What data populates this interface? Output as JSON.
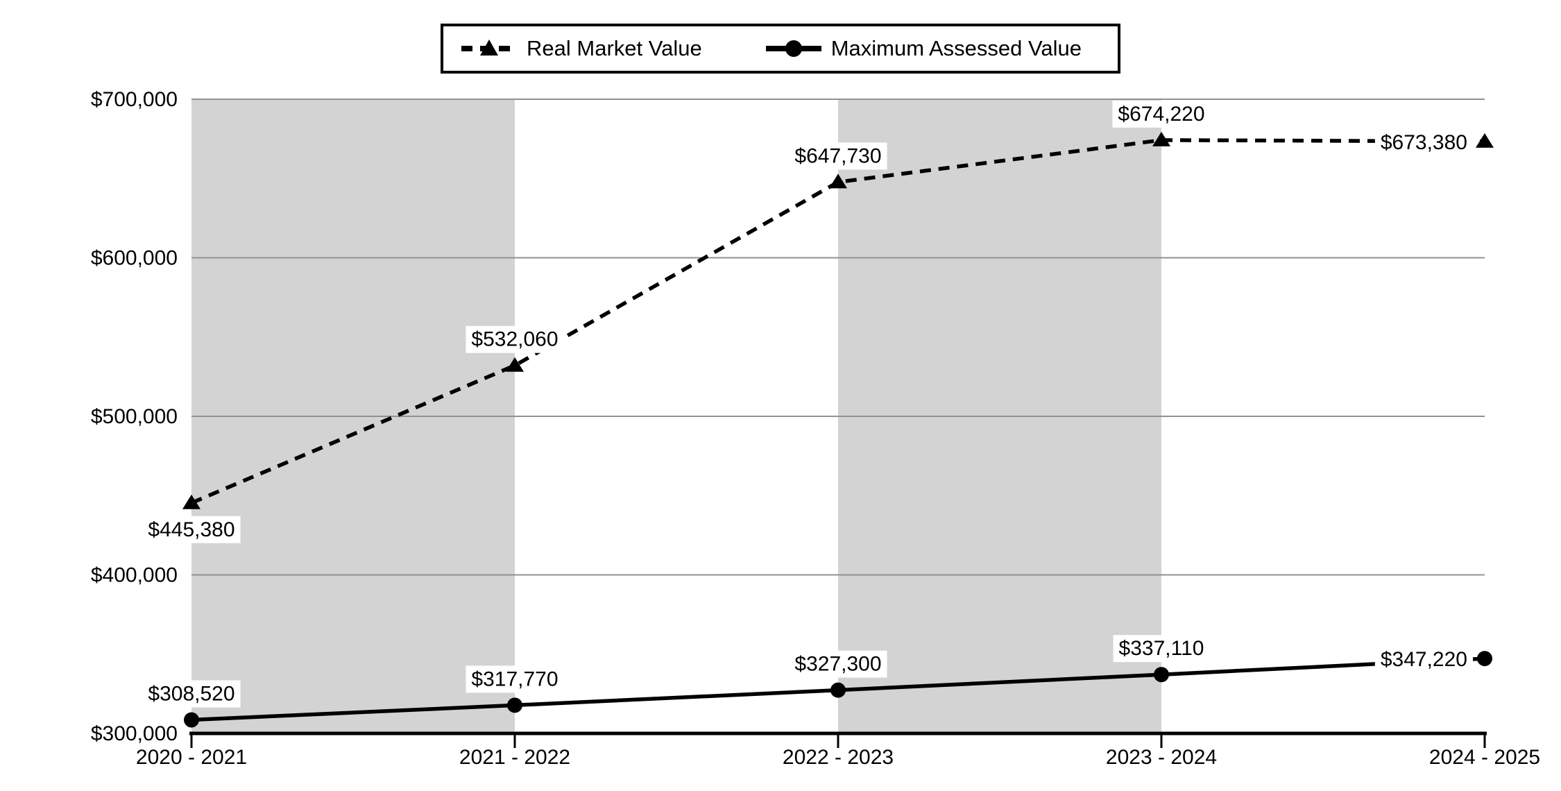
{
  "chart_data": {
    "type": "line",
    "title": "",
    "xlabel": "",
    "ylabel": "",
    "categories": [
      "2020 - 2021",
      "2021 - 2022",
      "2022 - 2023",
      "2023 - 2024",
      "2024 - 2025"
    ],
    "series": [
      {
        "name": "Real Market Value",
        "line": "dashed",
        "marker": "triangle",
        "values": [
          445380,
          532060,
          647730,
          674220,
          673380
        ],
        "labels": [
          "$445,380",
          "$532,060",
          "$647,730",
          "$674,220",
          "$673,380"
        ],
        "label_positions": [
          "below",
          "above",
          "above",
          "above",
          "left"
        ]
      },
      {
        "name": "Maximum Assessed Value",
        "line": "solid",
        "marker": "circle",
        "values": [
          308520,
          317770,
          327300,
          337110,
          347220
        ],
        "labels": [
          "$308,520",
          "$317,770",
          "$327,300",
          "$337,110",
          "$347,220"
        ],
        "label_positions": [
          "above",
          "above",
          "above",
          "above",
          "left"
        ]
      }
    ],
    "ylim": [
      300000,
      700000
    ],
    "yticks": [
      {
        "value": 300000,
        "label": "$300,000"
      },
      {
        "value": 400000,
        "label": "$400,000"
      },
      {
        "value": 500000,
        "label": "$500,000"
      },
      {
        "value": 600000,
        "label": "$600,000"
      },
      {
        "value": 700000,
        "label": "$700,000"
      }
    ],
    "grid": "horizontal",
    "legend_position": "top-center",
    "shaded_bands": [
      [
        0,
        1
      ],
      [
        2,
        3
      ]
    ],
    "colors": {
      "series": "#000000",
      "band": "#d3d3d3",
      "gridline": "#919191",
      "label_bg": "#ffffff",
      "background": "#ffffff"
    }
  }
}
